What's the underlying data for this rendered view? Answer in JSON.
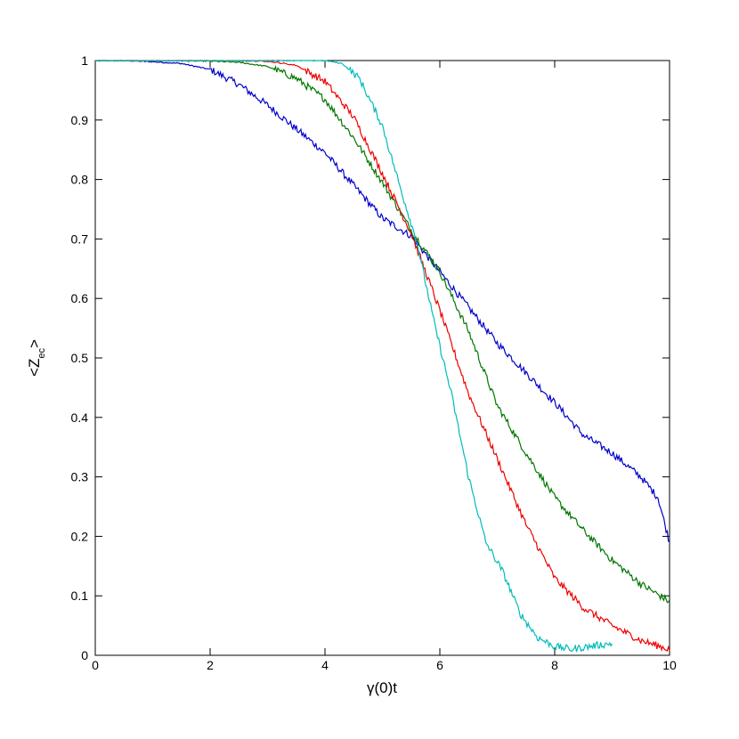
{
  "chart_data": {
    "type": "line",
    "xlabel": "γ(0)t",
    "ylabel_main": "<Z",
    "ylabel_sub": "ec",
    "ylabel_tail": ">",
    "xlim": [
      0,
      10
    ],
    "ylim": [
      0,
      1
    ],
    "x_ticks": [
      "0",
      "2",
      "4",
      "6",
      "8",
      "10"
    ],
    "y_ticks": [
      "0",
      "0.1",
      "0.2",
      "0.3",
      "0.4",
      "0.5",
      "0.6",
      "0.7",
      "0.8",
      "0.9",
      "1"
    ],
    "grid": false,
    "legend": "none",
    "series": [
      {
        "color": "#0000cc",
        "x": [
          0,
          0.5,
          1,
          1.5,
          2,
          2.5,
          3,
          3.5,
          4,
          4.5,
          5,
          5.5,
          6,
          6.5,
          7,
          7.5,
          8,
          8.5,
          9,
          9.5,
          9.8,
          10
        ],
        "y": [
          1,
          1,
          0.998,
          0.995,
          0.985,
          0.96,
          0.925,
          0.885,
          0.845,
          0.79,
          0.735,
          0.705,
          0.645,
          0.585,
          0.525,
          0.475,
          0.425,
          0.37,
          0.34,
          0.3,
          0.265,
          0.19
        ]
      },
      {
        "color": "#007700",
        "x": [
          0,
          1,
          2,
          2.5,
          3,
          3.5,
          4,
          4.5,
          5,
          5.5,
          6,
          6.5,
          7,
          7.5,
          8,
          8.5,
          9,
          9.5,
          10
        ],
        "y": [
          1,
          1,
          0.999,
          0.997,
          0.99,
          0.97,
          0.935,
          0.87,
          0.795,
          0.715,
          0.645,
          0.545,
          0.42,
          0.34,
          0.265,
          0.21,
          0.16,
          0.12,
          0.09
        ]
      },
      {
        "color": "#ee0000",
        "x": [
          0,
          1,
          2,
          3,
          3.5,
          4,
          4.5,
          5,
          5.5,
          6,
          6.5,
          7,
          7.5,
          8,
          8.5,
          9,
          9.5,
          10
        ],
        "y": [
          1,
          1,
          1,
          0.999,
          0.992,
          0.965,
          0.905,
          0.81,
          0.71,
          0.58,
          0.44,
          0.33,
          0.22,
          0.13,
          0.08,
          0.05,
          0.025,
          0.01
        ]
      },
      {
        "color": "#00bbbb",
        "x": [
          0,
          1,
          2,
          3,
          4,
          4.3,
          4.6,
          5,
          5.3,
          5.6,
          5.9,
          6.2,
          6.5,
          6.8,
          7.1,
          7.4,
          7.7,
          8,
          8.3,
          8.6,
          9
        ],
        "y": [
          1,
          1,
          1,
          1,
          1,
          0.995,
          0.97,
          0.89,
          0.79,
          0.695,
          0.56,
          0.44,
          0.3,
          0.19,
          0.14,
          0.07,
          0.03,
          0.015,
          0.01,
          0.015,
          0.02
        ]
      }
    ]
  }
}
